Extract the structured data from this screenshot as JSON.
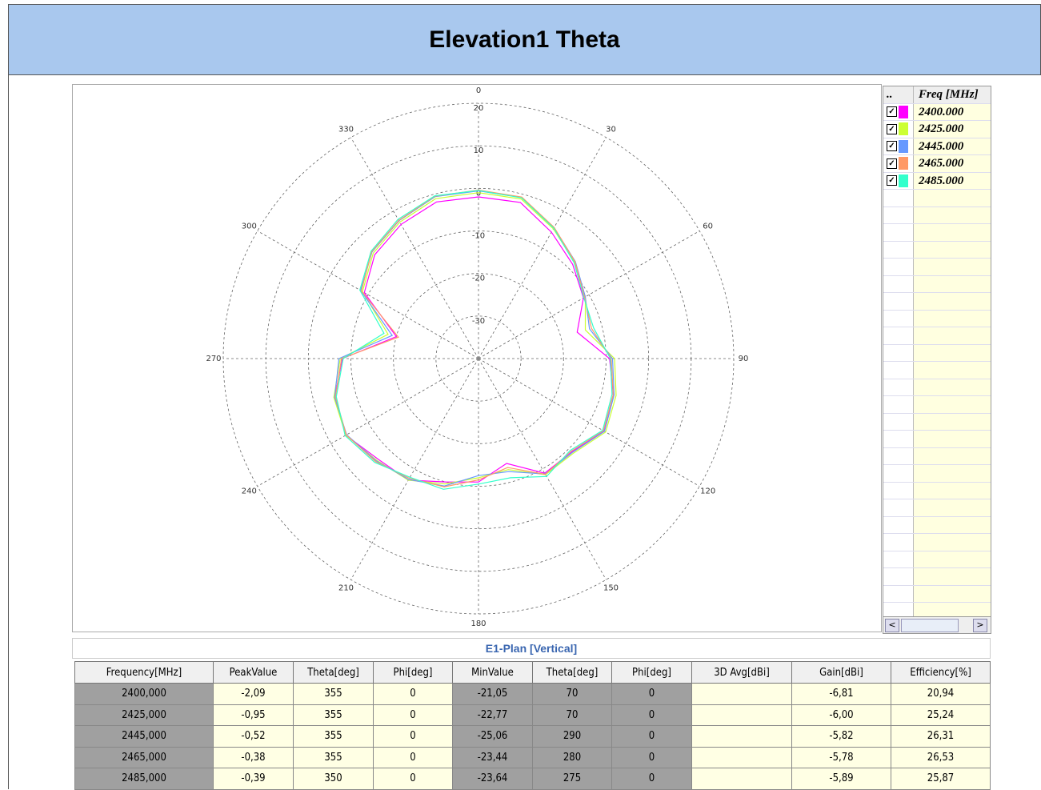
{
  "header": {
    "title": "Elevation1  Theta"
  },
  "chart_data": {
    "type": "polar",
    "caption": "E1-Plan [Vertical]",
    "theta": [
      0,
      15,
      30,
      45,
      60,
      75,
      90,
      105,
      120,
      135,
      150,
      165,
      180,
      195,
      210,
      225,
      240,
      255,
      270,
      285,
      300,
      315,
      330,
      345
    ],
    "rlim": [
      -40,
      20
    ],
    "rticks": [
      -30,
      -20,
      -10,
      0,
      10,
      20
    ],
    "thetaticks": [
      0,
      30,
      60,
      90,
      120,
      150,
      180,
      210,
      240,
      270,
      300,
      330
    ],
    "grid": true,
    "series": [
      {
        "name": "2400.000",
        "color": "#ff00ff",
        "values": [
          -2,
          -2,
          -5.7,
          -8.7,
          -11.5,
          -16,
          -9.2,
          -7.2,
          -6,
          -9,
          -8.9,
          -14.5,
          -11,
          -10,
          -7,
          -6.6,
          -4,
          -5,
          -8,
          -20,
          -9,
          -5.5,
          -3.6,
          -1.9
        ]
      },
      {
        "name": "2425.000",
        "color": "#ccff33",
        "values": [
          -1,
          -1.2,
          -4.8,
          -8,
          -11,
          -14,
          -8,
          -6.5,
          -5.5,
          -8.5,
          -8.5,
          -13,
          -12,
          -9.5,
          -7,
          -6.2,
          -4,
          -4.8,
          -7.5,
          -18,
          -8.5,
          -5,
          -3,
          -1.1
        ]
      },
      {
        "name": "2445.000",
        "color": "#6699ff",
        "values": [
          -0.6,
          -0.8,
          -4.5,
          -7.8,
          -11,
          -13,
          -8.5,
          -7,
          -5.8,
          -8.8,
          -8.7,
          -12.5,
          -12.5,
          -9,
          -7.2,
          -6,
          -4.2,
          -5,
          -7.2,
          -19,
          -8,
          -4.6,
          -2.6,
          -0.6
        ]
      },
      {
        "name": "2465.000",
        "color": "#ff9966",
        "values": [
          -0.4,
          -0.7,
          -4.4,
          -7.9,
          -11.2,
          -12.5,
          -8.8,
          -7.2,
          -6.1,
          -9.2,
          -8.6,
          -13.5,
          -11.5,
          -8.8,
          -7.5,
          -5.8,
          -4.1,
          -5.2,
          -7.8,
          -20.5,
          -8.2,
          -4.5,
          -2.5,
          -0.5
        ]
      },
      {
        "name": "2485.000",
        "color": "#33ffcc",
        "values": [
          -0.5,
          -0.9,
          -4.6,
          -8.2,
          -11.4,
          -12,
          -9,
          -7.5,
          -6.3,
          -9.5,
          -8,
          -11,
          -10.5,
          -8.2,
          -7.8,
          -5.5,
          -3.8,
          -5.4,
          -8.2,
          -17,
          -7.8,
          -4.3,
          -2.2,
          -0.4
        ]
      }
    ]
  },
  "legend": {
    "headers": [
      "..",
      "Freq [MHz]"
    ]
  },
  "table": {
    "headers": [
      "Frequency[MHz]",
      "PeakValue",
      "Theta[deg]",
      "Phi[deg]",
      "MinValue",
      "Theta[deg]",
      "Phi[deg]",
      "3D Avg[dBi]",
      "Gain[dBi]",
      "Efficiency[%]"
    ],
    "rows": [
      [
        "2400,000",
        "-2,09",
        "355",
        "0",
        "-21,05",
        "70",
        "0",
        "",
        "-6,81",
        "20,94"
      ],
      [
        "2425,000",
        "-0,95",
        "355",
        "0",
        "-22,77",
        "70",
        "0",
        "",
        "-6,00",
        "25,24"
      ],
      [
        "2445,000",
        "-0,52",
        "355",
        "0",
        "-25,06",
        "290",
        "0",
        "",
        "-5,82",
        "26,31"
      ],
      [
        "2465,000",
        "-0,38",
        "355",
        "0",
        "-23,44",
        "280",
        "0",
        "",
        "-5,78",
        "26,53"
      ],
      [
        "2485,000",
        "-0,39",
        "350",
        "0",
        "-23,64",
        "275",
        "0",
        "",
        "-5,89",
        "25,87"
      ]
    ]
  }
}
